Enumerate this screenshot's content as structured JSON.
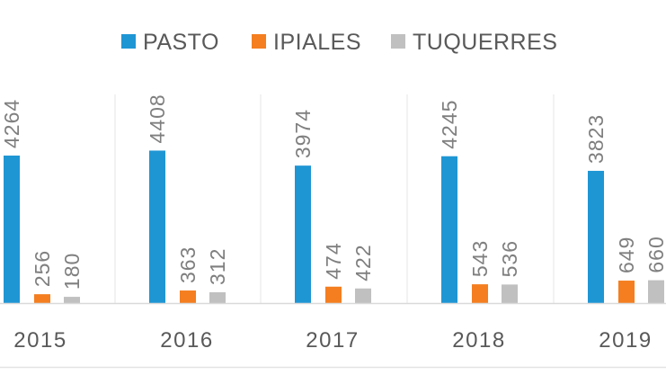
{
  "chart_data": {
    "type": "bar",
    "categories": [
      "2015",
      "2016",
      "2017",
      "2018",
      "2019"
    ],
    "series": [
      {
        "name": "PASTO",
        "values": [
          4264,
          4408,
          3974,
          4245,
          3823
        ],
        "color": "#1f96d4"
      },
      {
        "name": "IPIALES",
        "values": [
          256,
          363,
          474,
          543,
          649
        ],
        "color": "#f47e20"
      },
      {
        "name": "TUQUERRES",
        "values": [
          180,
          312,
          422,
          536,
          660
        ],
        "color": "#c0c0c0"
      }
    ],
    "title": "",
    "xlabel": "",
    "ylabel": "",
    "ylim": [
      0,
      5000
    ],
    "legend_position": "top",
    "grid": false,
    "data_labels": true
  }
}
